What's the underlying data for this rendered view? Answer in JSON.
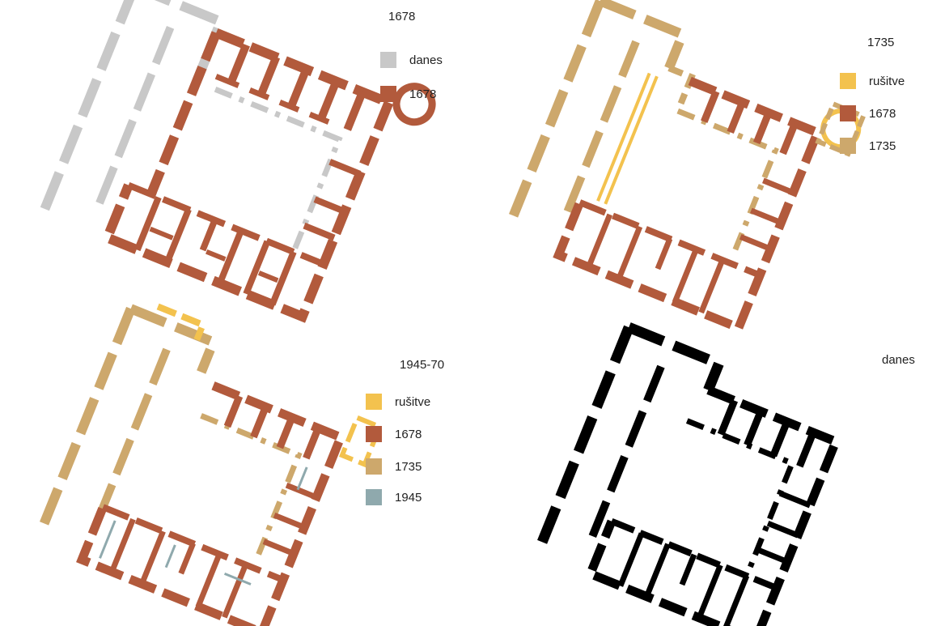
{
  "colors": {
    "danes": "#c8c8c8",
    "c1678": "#b25a3c",
    "c1735": "#cda86c",
    "rusitve": "#f3c24e",
    "c1945": "#8fa9ad",
    "today": "#000000"
  },
  "panels": [
    {
      "id": "1678",
      "title": "1678",
      "legend": [
        {
          "label": "danes",
          "color": "#c8c8c8"
        },
        {
          "label": "1678",
          "color": "#b25a3c"
        }
      ]
    },
    {
      "id": "1735",
      "title": "1735",
      "legend": [
        {
          "label": "rušitve",
          "color": "#f3c24e"
        },
        {
          "label": "1678",
          "color": "#b25a3c"
        },
        {
          "label": "1735",
          "color": "#cda86c"
        }
      ]
    },
    {
      "id": "1945-70",
      "title": "1945-70",
      "legend": [
        {
          "label": "rušitve",
          "color": "#f3c24e"
        },
        {
          "label": "1678",
          "color": "#b25a3c"
        },
        {
          "label": "1735",
          "color": "#cda86c"
        },
        {
          "label": "1945",
          "color": "#8fa9ad"
        }
      ]
    },
    {
      "id": "danes",
      "title": "danes",
      "legend": []
    }
  ]
}
